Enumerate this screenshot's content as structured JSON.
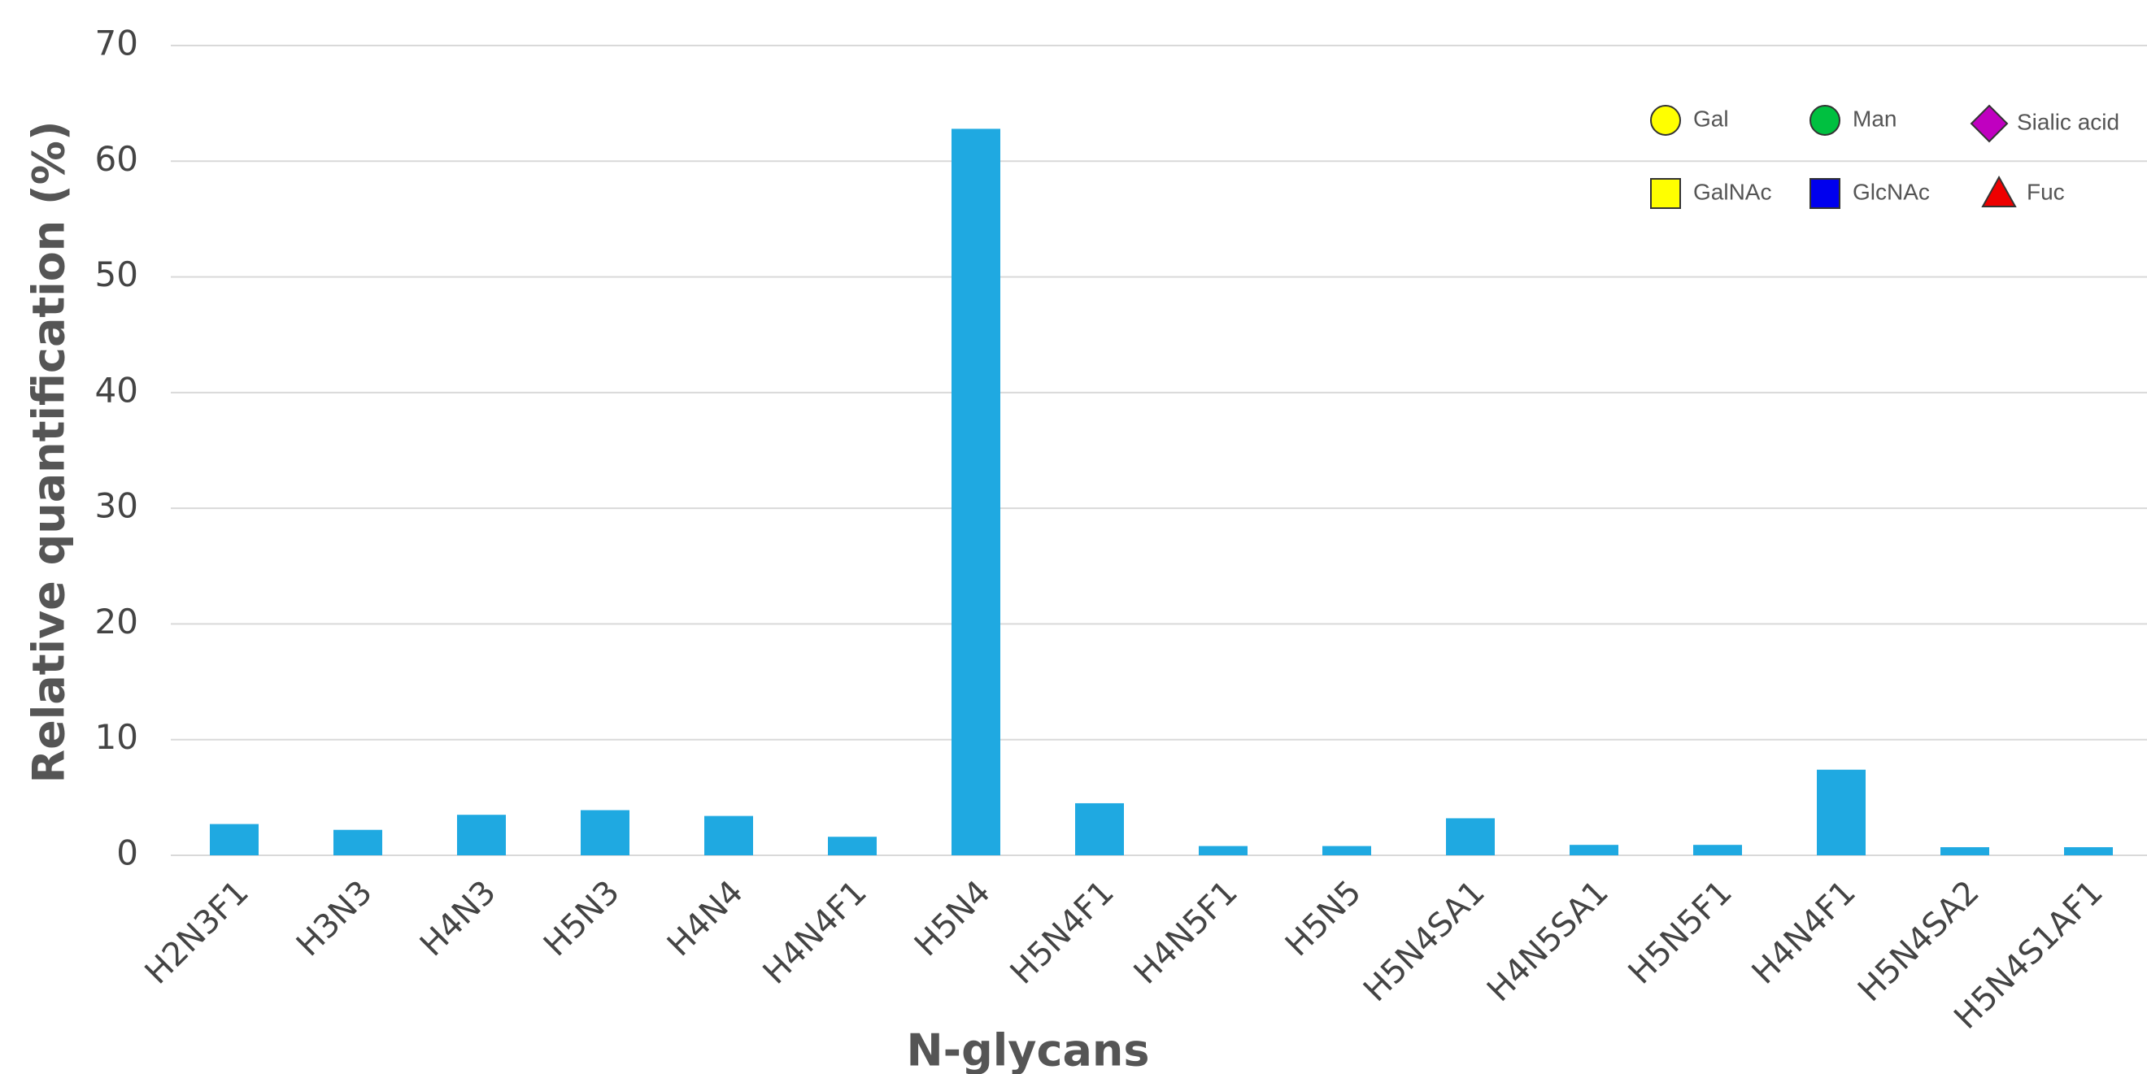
{
  "chart_data": {
    "type": "bar",
    "x_label": "N-glycans",
    "y_label": "Relative quantification (%)",
    "categories": [
      "H2N3F1",
      "H3N3",
      "H4N3",
      "H5N3",
      "H4N4",
      "H4N4F1",
      "H5N4",
      "H5N4F1",
      "H4N5F1",
      "H5N5",
      "H5N4SA1",
      "H4N5SA1",
      "H5N5F1",
      "H4N4F1",
      "H5N4SA2",
      "H5N4S1AF1"
    ],
    "values": [
      2.7,
      2.2,
      3.5,
      3.9,
      3.4,
      1.6,
      62.8,
      4.5,
      0.8,
      0.8,
      3.2,
      0.9,
      0.9,
      7.4,
      0.7,
      0.7
    ],
    "color": "#1fa9e1",
    "ylim": [
      0,
      70
    ],
    "yticks": [
      0,
      10,
      20,
      30,
      40,
      50,
      60,
      70
    ],
    "grid": true,
    "symbol_legend": [
      {
        "label": "Gal",
        "shape": "circle",
        "color": "#ffff00"
      },
      {
        "label": "Man",
        "shape": "circle",
        "color": "#00c040"
      },
      {
        "label": "Sialic acid",
        "shape": "diamond",
        "color": "#c000c0"
      },
      {
        "label": "GalNAc",
        "shape": "square",
        "color": "#ffff00"
      },
      {
        "label": "GlcNAc",
        "shape": "square",
        "color": "#0000ee"
      },
      {
        "label": "Fuc",
        "shape": "triangle",
        "color": "#ee0000"
      }
    ]
  }
}
